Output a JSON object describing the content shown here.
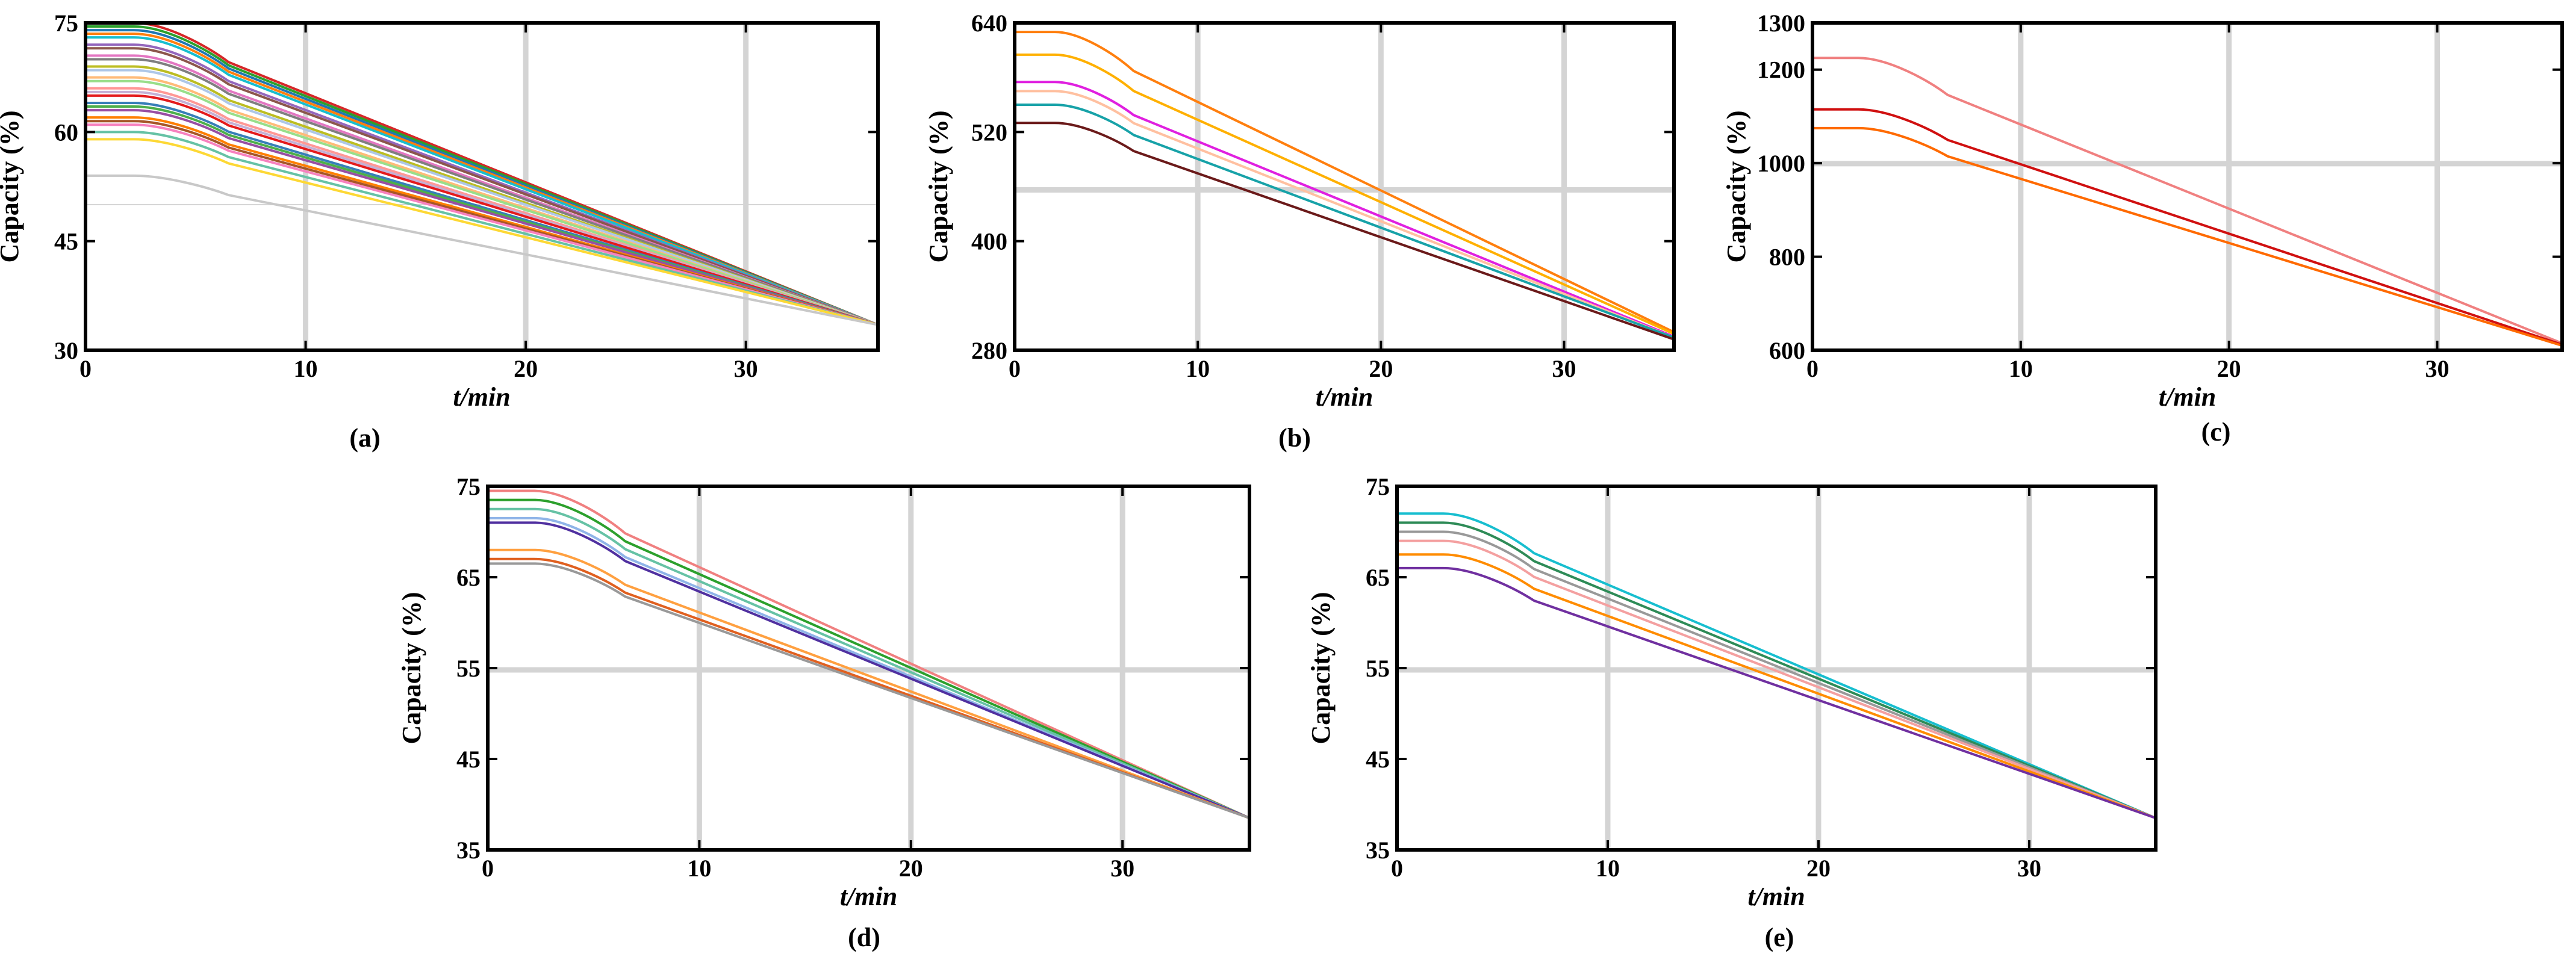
{
  "chart_data": [
    {
      "type": "line",
      "panel": "(a)",
      "caption": "(a)",
      "xlabel": "t/min",
      "ylabel": "Capacity (%)",
      "xlim": [
        0,
        36
      ],
      "ylim": [
        30,
        75
      ],
      "xticks": [
        0,
        10,
        20,
        30
      ],
      "yticks": [
        30,
        45,
        60,
        75
      ],
      "grid": true,
      "end_value": 33.5,
      "series": [
        {
          "start": 75.0,
          "color": "#d62728"
        },
        {
          "start": 74.5,
          "color": "#2ca02c"
        },
        {
          "start": 74.0,
          "color": "#1f77b4"
        },
        {
          "start": 73.5,
          "color": "#ff7f0e"
        },
        {
          "start": 73.0,
          "color": "#17becf"
        },
        {
          "start": 72.0,
          "color": "#9467bd"
        },
        {
          "start": 71.5,
          "color": "#8c564b"
        },
        {
          "start": 70.5,
          "color": "#e377c2"
        },
        {
          "start": 70.0,
          "color": "#7f7f7f"
        },
        {
          "start": 69.0,
          "color": "#bcbd22"
        },
        {
          "start": 68.5,
          "color": "#aec7e8"
        },
        {
          "start": 67.5,
          "color": "#ffbb78"
        },
        {
          "start": 67.0,
          "color": "#98df8a"
        },
        {
          "start": 66.0,
          "color": "#ff9896"
        },
        {
          "start": 65.5,
          "color": "#c5b0d5"
        },
        {
          "start": 65.0,
          "color": "#e41a1c"
        },
        {
          "start": 64.0,
          "color": "#377eb8"
        },
        {
          "start": 63.5,
          "color": "#4daf4a"
        },
        {
          "start": 63.0,
          "color": "#984ea3"
        },
        {
          "start": 62.0,
          "color": "#ff7f00"
        },
        {
          "start": 61.5,
          "color": "#a65628"
        },
        {
          "start": 61.0,
          "color": "#f781bf"
        },
        {
          "start": 60.0,
          "color": "#66c2a5"
        },
        {
          "start": 59.0,
          "color": "#fdd835"
        },
        {
          "start": 54.0,
          "color": "#c8c8c8"
        }
      ]
    },
    {
      "type": "line",
      "panel": "(b)",
      "caption": "(b)",
      "xlabel": "t/min",
      "ylabel": "Capacity (%)",
      "xlim": [
        0,
        36
      ],
      "ylim": [
        280,
        640
      ],
      "xticks": [
        0,
        10,
        20,
        30
      ],
      "yticks": [
        280,
        400,
        520,
        640
      ],
      "grid": true,
      "series": [
        {
          "start": 630,
          "end": 300,
          "color": "#ff7f0e"
        },
        {
          "start": 605,
          "end": 298,
          "color": "#ffb000"
        },
        {
          "start": 575,
          "end": 295,
          "color": "#e020e0"
        },
        {
          "start": 565,
          "end": 294,
          "color": "#ffc0a0"
        },
        {
          "start": 550,
          "end": 294,
          "color": "#17a2a8"
        },
        {
          "start": 530,
          "end": 292,
          "color": "#6b1a1a"
        }
      ]
    },
    {
      "type": "line",
      "panel": "(c)",
      "caption": "(c)",
      "xlabel": "t/min",
      "ylabel": "Capacity (%)",
      "xlim": [
        0,
        36
      ],
      "ylim": [
        600,
        1300
      ],
      "xticks": [
        0,
        10,
        20,
        30
      ],
      "yticks": [
        600,
        800,
        1000,
        1200,
        1300
      ],
      "grid": true,
      "series": [
        {
          "start": 1225,
          "end": 615,
          "color": "#f08080"
        },
        {
          "start": 1115,
          "end": 612,
          "color": "#d01010"
        },
        {
          "start": 1075,
          "end": 610,
          "color": "#ff6a00"
        }
      ]
    },
    {
      "type": "line",
      "panel": "(d)",
      "caption": "(d)",
      "xlabel": "t/min",
      "ylabel": "Capacity (%)",
      "xlim": [
        0,
        36
      ],
      "ylim": [
        35,
        75
      ],
      "xticks": [
        0,
        10,
        20,
        30
      ],
      "yticks": [
        35,
        45,
        55,
        65,
        75
      ],
      "grid": true,
      "end_value": 38.5,
      "series": [
        {
          "start": 74.5,
          "color": "#f08080"
        },
        {
          "start": 73.5,
          "color": "#2ca02c"
        },
        {
          "start": 72.5,
          "color": "#66c2a5"
        },
        {
          "start": 71.5,
          "color": "#8fb4e8"
        },
        {
          "start": 71.0,
          "color": "#5030a0"
        },
        {
          "start": 68.0,
          "color": "#ffa040"
        },
        {
          "start": 67.0,
          "color": "#e06020"
        },
        {
          "start": 66.5,
          "color": "#999999"
        }
      ]
    },
    {
      "type": "line",
      "panel": "(e)",
      "caption": "(e)",
      "xlabel": "t/min",
      "ylabel": "Capacity (%)",
      "xlim": [
        0,
        36
      ],
      "ylim": [
        35,
        75
      ],
      "xticks": [
        0,
        10,
        20,
        30
      ],
      "yticks": [
        35,
        45,
        55,
        65,
        75
      ],
      "grid": true,
      "end_value": 38.5,
      "series": [
        {
          "start": 72.0,
          "color": "#17becf"
        },
        {
          "start": 71.0,
          "color": "#2e8b57"
        },
        {
          "start": 70.0,
          "color": "#999999"
        },
        {
          "start": 69.0,
          "color": "#f4a0a0"
        },
        {
          "start": 67.5,
          "color": "#ff8c00"
        },
        {
          "start": 66.0,
          "color": "#7030a0"
        }
      ]
    }
  ]
}
